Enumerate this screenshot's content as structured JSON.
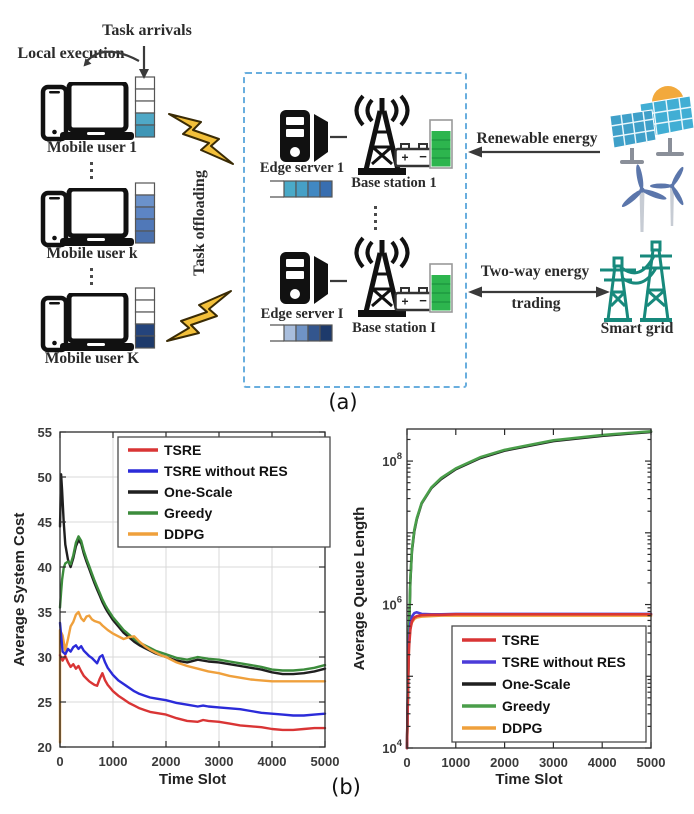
{
  "panel_a": {
    "label": "(a)",
    "annotations": {
      "task_arrivals": "Task arrivals",
      "local_execution": "Local execution",
      "task_offloading": "Task offloading",
      "renewable_energy": "Renewable energy",
      "two_way_line1": "Two-way energy",
      "two_way_line2": "trading",
      "smart_grid": "Smart grid"
    },
    "mobile_users": [
      {
        "label": "Mobile user 1",
        "queue_cells": [
          "#ffffff",
          "#ffffff",
          "#ffffff",
          "#4fa8c6",
          "#3f96b6"
        ]
      },
      {
        "label": "Mobile user k",
        "queue_cells": [
          "#ffffff",
          "#6b92cb",
          "#5d85c4",
          "#5078b8",
          "#4a70ad"
        ]
      },
      {
        "label": "Mobile user K",
        "queue_cells": [
          "#ffffff",
          "#ffffff",
          "#ffffff",
          "#24447c",
          "#1d3a6b"
        ]
      }
    ],
    "edge_nodes": [
      {
        "server_label": "Edge server 1",
        "station_label": "Base station 1",
        "queue_cells": [
          "#4aaac8",
          "#46a0c6",
          "#4188c2",
          "#386eb0"
        ]
      },
      {
        "server_label": "Edge server I",
        "station_label": "Base station I",
        "queue_cells": [
          "#a9bedd",
          "#6f93c6",
          "#33568e",
          "#1d3a6b"
        ]
      }
    ],
    "colors": {
      "lightning": "#f3c03a",
      "storage": "#2db54e",
      "grid_teal": "#17897c",
      "box_dash": "#69aede",
      "solar": "#41aed4",
      "solar_front": "#3fa0c9",
      "sun": "#f2a93c",
      "turbine": "#5b76ab",
      "stand_gray": "#8a8f99"
    }
  },
  "panel_b": {
    "label": "(b)"
  },
  "chart_data": [
    {
      "type": "line",
      "title": "",
      "xlabel": "Time Slot",
      "ylabel": "Average System Cost",
      "xlim": [
        0,
        5000
      ],
      "ylim": [
        20,
        55
      ],
      "xticks": [
        0,
        1000,
        2000,
        3000,
        4000,
        5000
      ],
      "yticks": [
        20,
        25,
        30,
        35,
        40,
        45,
        50,
        55
      ],
      "grid": true,
      "legend_position": "upper-left-inner",
      "series": [
        {
          "name": "TSRE",
          "color": "#d93535",
          "x": [
            0,
            50,
            100,
            150,
            200,
            250,
            300,
            350,
            400,
            450,
            500,
            550,
            600,
            650,
            700,
            750,
            800,
            850,
            900,
            1000,
            1100,
            1200,
            1300,
            1400,
            1500,
            1600,
            1700,
            1800,
            1900,
            2000,
            2200,
            2400,
            2600,
            2700,
            2800,
            3000,
            3200,
            3400,
            3600,
            3800,
            4000,
            4200,
            4400,
            4600,
            4800,
            5000
          ],
          "y": [
            30.2,
            29.6,
            30.1,
            29.4,
            28.9,
            29.2,
            28.7,
            29.0,
            28.4,
            27.9,
            27.6,
            27.3,
            27.1,
            26.9,
            26.8,
            27.6,
            28.2,
            27.4,
            26.9,
            26.2,
            25.7,
            25.3,
            24.9,
            24.6,
            24.3,
            24.1,
            23.9,
            23.8,
            23.7,
            23.6,
            23.2,
            22.9,
            22.8,
            23.0,
            22.9,
            22.8,
            22.6,
            22.4,
            22.3,
            22.2,
            22.0,
            21.9,
            21.9,
            22.0,
            22.1,
            22.1
          ]
        },
        {
          "name": "TSRE without RES",
          "color": "#2b2bd9",
          "x": [
            0,
            50,
            100,
            150,
            200,
            250,
            300,
            350,
            400,
            450,
            500,
            550,
            600,
            650,
            700,
            750,
            800,
            850,
            900,
            1000,
            1100,
            1200,
            1300,
            1400,
            1500,
            1600,
            1700,
            1800,
            1900,
            2000,
            2200,
            2400,
            2600,
            2700,
            2800,
            3000,
            3200,
            3400,
            3600,
            3800,
            4000,
            4200,
            4400,
            4600,
            4800,
            5000
          ],
          "y": [
            33.8,
            30.6,
            30.3,
            30.9,
            30.6,
            31.1,
            31.3,
            30.9,
            31.2,
            30.7,
            30.4,
            30.1,
            29.9,
            29.6,
            29.3,
            30.0,
            30.2,
            29.4,
            28.8,
            28.0,
            27.4,
            27.0,
            26.6,
            26.2,
            25.9,
            25.7,
            25.5,
            25.4,
            25.3,
            25.2,
            24.9,
            24.7,
            24.5,
            24.6,
            24.5,
            24.4,
            24.3,
            24.2,
            24.0,
            23.8,
            23.7,
            23.6,
            23.5,
            23.5,
            23.6,
            23.7
          ]
        },
        {
          "name": "One-Scale",
          "color": "#1f1f1f",
          "x": [
            0,
            20,
            40,
            70,
            100,
            150,
            200,
            250,
            300,
            350,
            400,
            450,
            500,
            550,
            600,
            650,
            700,
            750,
            800,
            850,
            900,
            1000,
            1100,
            1200,
            1300,
            1400,
            1500,
            1600,
            1700,
            1800,
            1900,
            2000,
            2200,
            2400,
            2600,
            2800,
            3000,
            3200,
            3400,
            3600,
            3800,
            4000,
            4200,
            4400,
            4600,
            4800,
            5000
          ],
          "y": [
            44.5,
            50.3,
            48.5,
            45.0,
            42.5,
            40.8,
            40.0,
            41.0,
            42.3,
            43.0,
            42.6,
            41.5,
            40.6,
            39.8,
            39.0,
            38.2,
            37.5,
            36.8,
            36.1,
            35.5,
            35.0,
            34.1,
            33.4,
            32.7,
            32.2,
            31.7,
            31.3,
            31.0,
            30.7,
            30.4,
            30.2,
            30.0,
            29.6,
            29.4,
            29.7,
            29.5,
            29.4,
            29.2,
            29.0,
            28.8,
            28.6,
            28.3,
            28.1,
            28.1,
            28.2,
            28.4,
            28.7
          ]
        },
        {
          "name": "Greedy",
          "color": "#3c8c3c",
          "x": [
            0,
            20,
            40,
            70,
            100,
            150,
            200,
            250,
            300,
            350,
            400,
            450,
            500,
            550,
            600,
            650,
            700,
            750,
            800,
            850,
            900,
            1000,
            1100,
            1200,
            1300,
            1400,
            1500,
            1600,
            1700,
            1800,
            1900,
            2000,
            2200,
            2400,
            2600,
            2800,
            3000,
            3200,
            3400,
            3600,
            3800,
            4000,
            4200,
            4400,
            4600,
            4800,
            5000
          ],
          "y": [
            35.5,
            37.2,
            38.6,
            39.9,
            40.4,
            40.6,
            40.3,
            41.3,
            42.7,
            43.4,
            42.9,
            41.8,
            40.9,
            40.1,
            39.3,
            38.5,
            37.8,
            37.1,
            36.4,
            35.8,
            35.3,
            34.4,
            33.7,
            33.0,
            32.5,
            32.0,
            31.6,
            31.3,
            31.0,
            30.7,
            30.5,
            30.3,
            29.9,
            29.7,
            30.0,
            29.8,
            29.7,
            29.5,
            29.3,
            29.1,
            28.9,
            28.6,
            28.5,
            28.5,
            28.6,
            28.8,
            29.1
          ]
        },
        {
          "name": "DDPG",
          "color": "#efa03c",
          "x": [
            0,
            0,
            50,
            100,
            150,
            200,
            250,
            300,
            350,
            400,
            450,
            500,
            550,
            600,
            650,
            700,
            750,
            800,
            900,
            1000,
            1100,
            1200,
            1300,
            1400,
            1500,
            1600,
            1700,
            1800,
            1900,
            2000,
            2200,
            2400,
            2600,
            2800,
            3000,
            3200,
            3400,
            3600,
            3800,
            4000,
            4200,
            4400,
            4600,
            4800,
            5000
          ],
          "y": [
            20.5,
            33.0,
            32.4,
            30.7,
            32.0,
            33.4,
            33.9,
            34.7,
            35.0,
            34.3,
            34.0,
            34.5,
            34.6,
            34.2,
            34.0,
            33.9,
            33.8,
            33.5,
            33.0,
            32.6,
            32.3,
            32.0,
            32.2,
            32.3,
            31.7,
            31.2,
            30.8,
            30.5,
            30.2,
            30.0,
            29.4,
            29.0,
            28.7,
            28.4,
            28.2,
            27.9,
            27.7,
            27.5,
            27.4,
            27.3,
            27.3,
            27.3,
            27.3,
            27.3,
            27.3
          ]
        }
      ]
    },
    {
      "type": "line",
      "yscale": "log",
      "title": "",
      "xlabel": "Time Slot",
      "ylabel": "Average Queue Length",
      "xlim": [
        0,
        5000
      ],
      "ylim": [
        10000.0,
        280000000.0
      ],
      "xticks": [
        0,
        1000,
        2000,
        3000,
        4000,
        5000
      ],
      "ytick_labels": [
        {
          "v": 10000.0,
          "exp": "4"
        },
        {
          "v": 1000000.0,
          "exp": "6"
        },
        {
          "v": 100000000.0,
          "exp": "8"
        }
      ],
      "grid": false,
      "legend_position": "lower-right-inner",
      "series": [
        {
          "name": "TSRE",
          "color": "#d93535",
          "x": [
            0,
            20,
            40,
            70,
            100,
            150,
            200,
            300,
            500,
            700,
            1000,
            1500,
            2000,
            3000,
            4000,
            5000
          ],
          "y": [
            10000.0,
            80000.0,
            250000.0,
            450000.0,
            580000.0,
            660000.0,
            690000.0,
            710000.0,
            720000.0,
            720000.0,
            730000.0,
            730000.0,
            730000.0,
            730000.0,
            730000.0,
            730000.0
          ]
        },
        {
          "name": "TSRE without RES",
          "color": "#4b3bd9",
          "x": [
            0,
            20,
            40,
            70,
            100,
            150,
            200,
            300,
            500,
            700,
            1000,
            1500,
            2000,
            3000,
            4000,
            5000
          ],
          "y": [
            10000.0,
            100000.0,
            320000.0,
            550000.0,
            680000.0,
            760000.0,
            780000.0,
            740000.0,
            730000.0,
            730000.0,
            740000.0,
            740000.0,
            740000.0,
            740000.0,
            740000.0,
            740000.0
          ]
        },
        {
          "name": "One-Scale",
          "color": "#1f1f1f",
          "x": [
            0,
            20,
            40,
            70,
            100,
            150,
            200,
            300,
            500,
            700,
            1000,
            1500,
            2000,
            3000,
            4000,
            5000
          ],
          "y": [
            10000.0,
            60000.0,
            400000.0,
            2200000.0,
            5500000.0,
            10500000.0,
            15500000.0,
            25500000.0,
            42000000.0,
            56000000.0,
            77000000.0,
            110000000.0,
            140000000.0,
            190000000.0,
            225000000.0,
            255000000.0
          ]
        },
        {
          "name": "Greedy",
          "color": "#4a9e4a",
          "x": [
            0,
            20,
            40,
            70,
            100,
            150,
            200,
            300,
            500,
            700,
            1000,
            1500,
            2000,
            3000,
            4000,
            5000
          ],
          "y": [
            10000.0,
            65000.0,
            420000.0,
            2300000.0,
            5800000.0,
            11000000.0,
            16000000.0,
            26000000.0,
            43000000.0,
            58000000.0,
            79000000.0,
            113000000.0,
            143000000.0,
            195000000.0,
            230000000.0,
            260000000.0
          ]
        },
        {
          "name": "DDPG",
          "color": "#efa03c",
          "x": [
            0,
            20,
            40,
            70,
            100,
            150,
            200,
            300,
            500,
            700,
            1000,
            1500,
            2000,
            3000,
            4000,
            5000
          ],
          "y": [
            10000.0,
            90000.0,
            280000.0,
            480000.0,
            560000.0,
            630000.0,
            660000.0,
            680000.0,
            690000.0,
            700000.0,
            700000.0,
            700000.0,
            700000.0,
            700000.0,
            700000.0,
            700000.0
          ]
        }
      ]
    }
  ]
}
